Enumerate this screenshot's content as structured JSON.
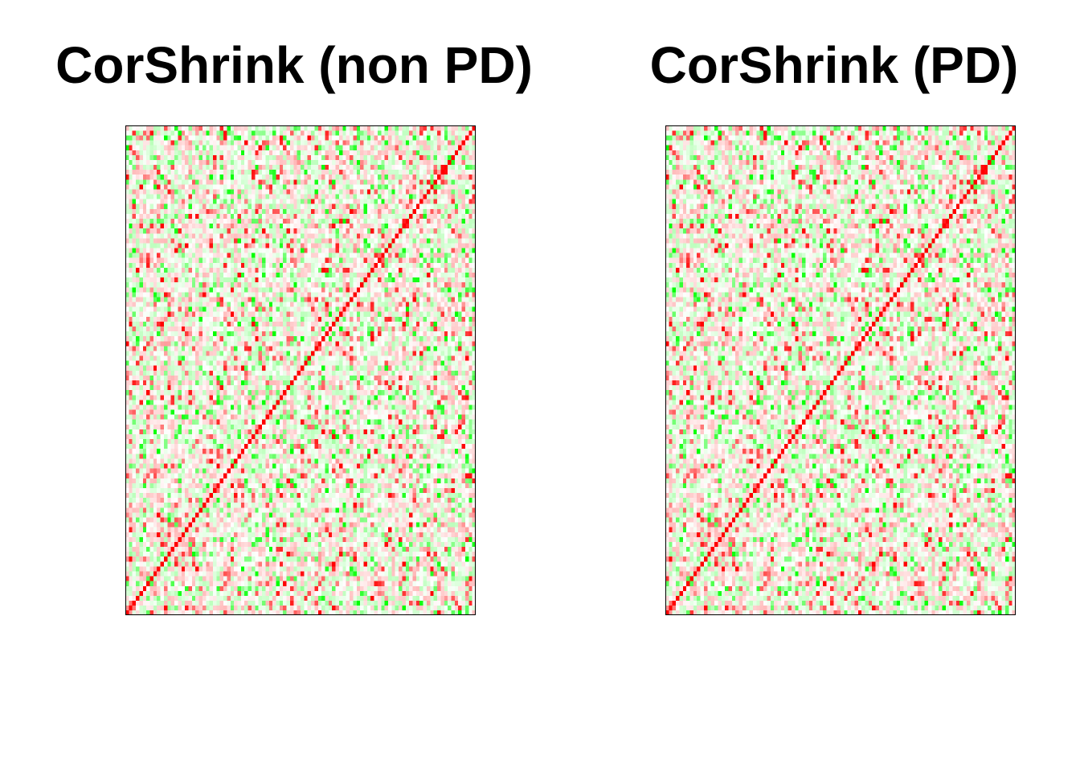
{
  "chart_data": [
    {
      "type": "heatmap",
      "title": "CorShrink (non PD)",
      "n": 100,
      "diagonal_value": 1.0,
      "value_range": [
        -1,
        1
      ],
      "color_scale": {
        "negative": "#00ff00",
        "zero": "#ffffff",
        "positive": "#ff0000"
      },
      "seed": 20571,
      "notable_cells": [
        {
          "row": 1,
          "col": 17,
          "value": 0.9
        },
        {
          "row": 44,
          "col": 24,
          "value": 0.9
        },
        {
          "row": 70,
          "col": 63,
          "value": 0.85
        },
        {
          "row": 85,
          "col": 99,
          "value": 0.8
        }
      ]
    },
    {
      "type": "heatmap",
      "title": "CorShrink (PD)",
      "n": 100,
      "diagonal_value": 1.0,
      "value_range": [
        -1,
        1
      ],
      "color_scale": {
        "negative": "#00ff00",
        "zero": "#ffffff",
        "positive": "#ff0000"
      },
      "seed": 20571,
      "notable_cells": [
        {
          "row": 1,
          "col": 17,
          "value": 0.9
        },
        {
          "row": 44,
          "col": 24,
          "value": 0.9
        },
        {
          "row": 70,
          "col": 63,
          "value": 0.85
        },
        {
          "row": 85,
          "col": 99,
          "value": 0.8
        }
      ]
    }
  ]
}
